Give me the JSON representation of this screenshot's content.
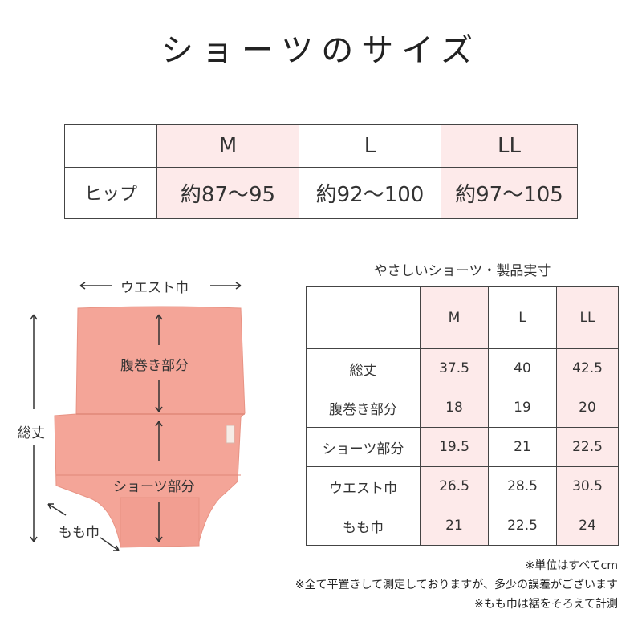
{
  "title": "ショーツのサイズ",
  "hip_table": {
    "headers": [
      "",
      "M",
      "L",
      "LL"
    ],
    "row": {
      "label": "ヒップ",
      "values": [
        "約87〜95",
        "約92〜100",
        "約97〜105"
      ]
    }
  },
  "product_table": {
    "title": "やさしいショーツ・製品実寸",
    "headers": [
      "",
      "M",
      "L",
      "LL"
    ],
    "rows": [
      {
        "label": "総丈",
        "values": [
          "37.5",
          "40",
          "42.5"
        ]
      },
      {
        "label": "腹巻き部分",
        "values": [
          "18",
          "19",
          "20"
        ]
      },
      {
        "label": "ショーツ部分",
        "values": [
          "19.5",
          "21",
          "22.5"
        ]
      },
      {
        "label": "ウエスト巾",
        "values": [
          "26.5",
          "28.5",
          "30.5"
        ]
      },
      {
        "label": "もも巾",
        "values": [
          "21",
          "22.5",
          "24"
        ]
      }
    ]
  },
  "diagram": {
    "waist": "ウエスト巾",
    "belly": "腹巻き部分",
    "shorts": "ショーツ部分",
    "total": "総丈",
    "thigh": "もも巾",
    "garment_color": "#f4a598"
  },
  "notes": [
    "※単位はすべてcm",
    "※全て平置きして測定しておりますが、多少の誤差がございます",
    "※もも巾は裾をそろえて計測"
  ],
  "colors": {
    "highlight": "#fdeaea",
    "border": "#444444"
  }
}
